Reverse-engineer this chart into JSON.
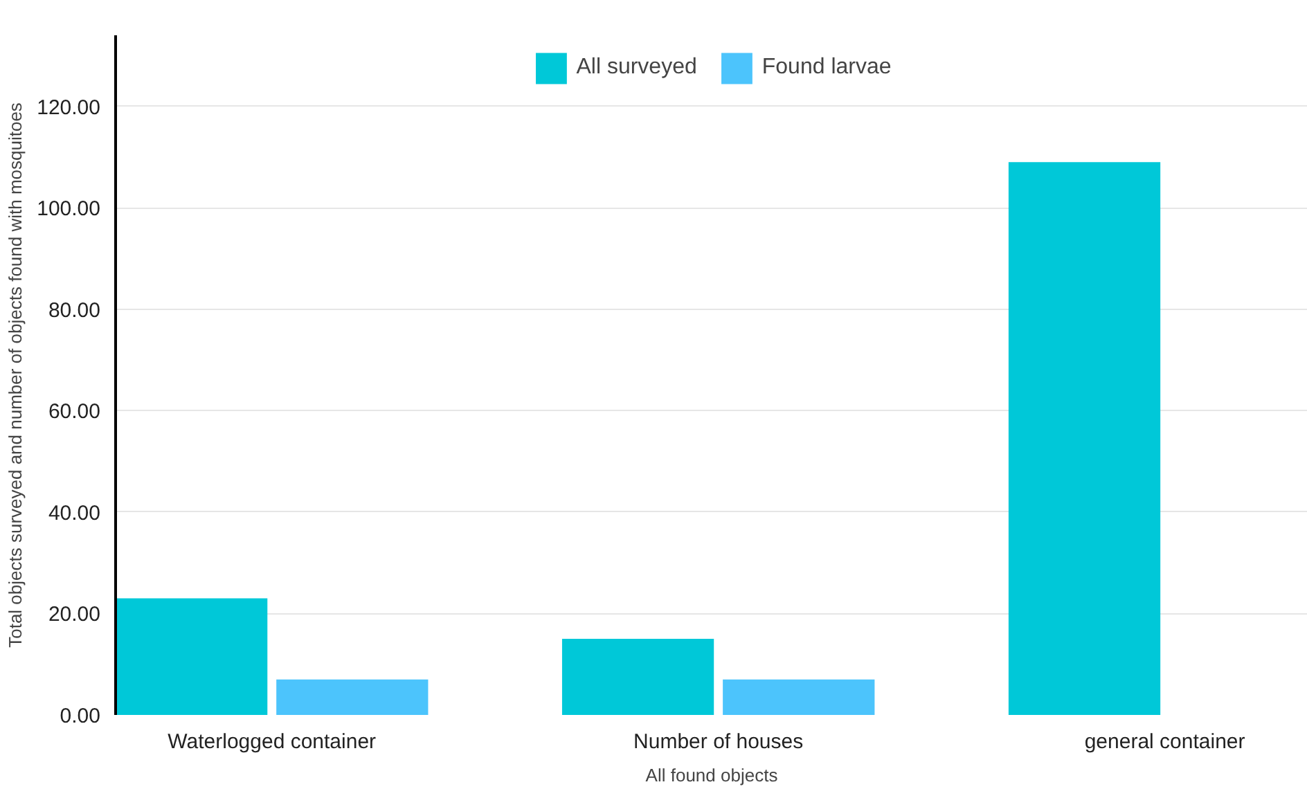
{
  "chart_data": {
    "type": "bar",
    "xlabel": "All found objects",
    "ylabel": "Total objects surveyed and number of objects found with mosquitoes",
    "categories": [
      "Waterlogged container",
      "Number of houses",
      "general container"
    ],
    "series": [
      {
        "name": "All surveyed",
        "color": "#00c8d8",
        "values": [
          23,
          15,
          109
        ]
      },
      {
        "name": "Found larvae",
        "color": "#4cc4fc",
        "values": [
          7,
          7,
          0
        ]
      }
    ],
    "ylim": [
      0,
      134
    ],
    "yticks": [
      {
        "value": 0,
        "label": "0.00"
      },
      {
        "value": 20,
        "label": "20.00"
      },
      {
        "value": 40,
        "label": "40.00"
      },
      {
        "value": 60,
        "label": "60.00"
      },
      {
        "value": 80,
        "label": "80.00"
      },
      {
        "value": 100,
        "label": "100.00"
      },
      {
        "value": 120,
        "label": "120.00"
      }
    ],
    "grid": "y",
    "legend": "top"
  }
}
